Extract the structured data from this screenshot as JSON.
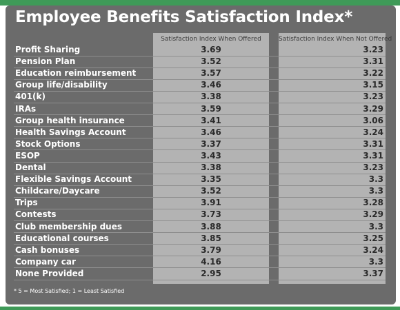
{
  "chart_data": {
    "type": "table",
    "title": "Employee Benefits Satisfaction Index*",
    "columns": [
      "Satisfaction Index When Offered",
      "Satisfaction Index When Not Offered"
    ],
    "rows": [
      {
        "benefit": "Profit Sharing",
        "offered": "3.69",
        "not_offered": "3.23"
      },
      {
        "benefit": "Pension Plan",
        "offered": "3.52",
        "not_offered": "3.31"
      },
      {
        "benefit": "Education reimbursement",
        "offered": "3.57",
        "not_offered": "3.22"
      },
      {
        "benefit": "Group life/disability",
        "offered": "3.46",
        "not_offered": "3.15"
      },
      {
        "benefit": "401(k)",
        "offered": "3.38",
        "not_offered": "3.23"
      },
      {
        "benefit": "IRAs",
        "offered": "3.59",
        "not_offered": "3.29"
      },
      {
        "benefit": "Group health insurance",
        "offered": "3.41",
        "not_offered": "3.06"
      },
      {
        "benefit": "Health Savings Account",
        "offered": "3.46",
        "not_offered": "3.24"
      },
      {
        "benefit": "Stock Options",
        "offered": "3.37",
        "not_offered": "3.31"
      },
      {
        "benefit": "ESOP",
        "offered": "3.43",
        "not_offered": "3.31"
      },
      {
        "benefit": "Dental",
        "offered": "3.38",
        "not_offered": "3.23"
      },
      {
        "benefit": "Flexible Savings Account",
        "offered": "3.35",
        "not_offered": "3.3"
      },
      {
        "benefit": "Childcare/Daycare",
        "offered": "3.52",
        "not_offered": "3.3"
      },
      {
        "benefit": "Trips",
        "offered": "3.91",
        "not_offered": "3.28"
      },
      {
        "benefit": "Contests",
        "offered": "3.73",
        "not_offered": "3.29"
      },
      {
        "benefit": "Club membership dues",
        "offered": "3.88",
        "not_offered": "3.3"
      },
      {
        "benefit": "Educational courses",
        "offered": "3.85",
        "not_offered": "3.25"
      },
      {
        "benefit": "Cash bonuses",
        "offered": "3.79",
        "not_offered": "3.24"
      },
      {
        "benefit": "Company car",
        "offered": "4.16",
        "not_offered": "3.3"
      },
      {
        "benefit": "None Provided",
        "offered": "2.95",
        "not_offered": "3.37"
      }
    ],
    "footnote": "* 5 = Most Satisfied; 1 = Least Satisfied"
  },
  "colors": {
    "panel": "#6b6b6b",
    "column_fill": "#b3b3b3",
    "accent_green": "#3f9a58"
  }
}
